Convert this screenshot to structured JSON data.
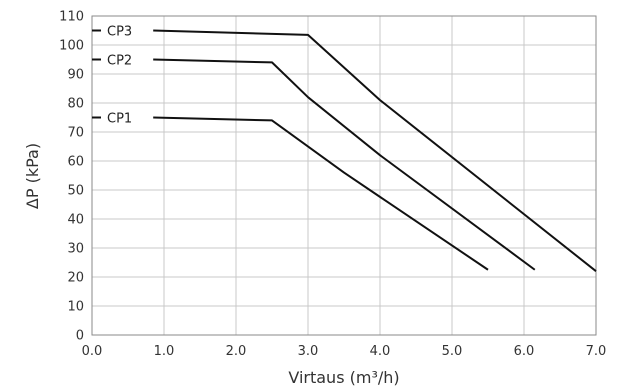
{
  "chart_data": {
    "type": "line",
    "xlabel": "Virtaus (m³/h)",
    "ylabel": "ΔP (kPa)",
    "xlim": [
      0,
      7
    ],
    "ylim": [
      0,
      110
    ],
    "xticks": [
      "0.0",
      "1.0",
      "2.0",
      "3.0",
      "4.0",
      "5.0",
      "6.0",
      "7.0"
    ],
    "yticks": [
      "0",
      "10",
      "20",
      "30",
      "40",
      "50",
      "60",
      "70",
      "80",
      "90",
      "100",
      "110"
    ],
    "grid": true,
    "series": [
      {
        "name": "CP1",
        "x": [
          0,
          0.85,
          2.5,
          3.5,
          5.5
        ],
        "y": [
          75,
          75,
          74,
          56,
          22.5
        ]
      },
      {
        "name": "CP2",
        "x": [
          0,
          0.85,
          2.5,
          3.0,
          4.0,
          6.15
        ],
        "y": [
          95,
          95,
          94,
          82,
          62,
          22.5
        ]
      },
      {
        "name": "CP3",
        "x": [
          0,
          0.85,
          3.0,
          4.0,
          7.0
        ],
        "y": [
          105,
          105,
          103.5,
          81,
          22
        ]
      }
    ]
  }
}
